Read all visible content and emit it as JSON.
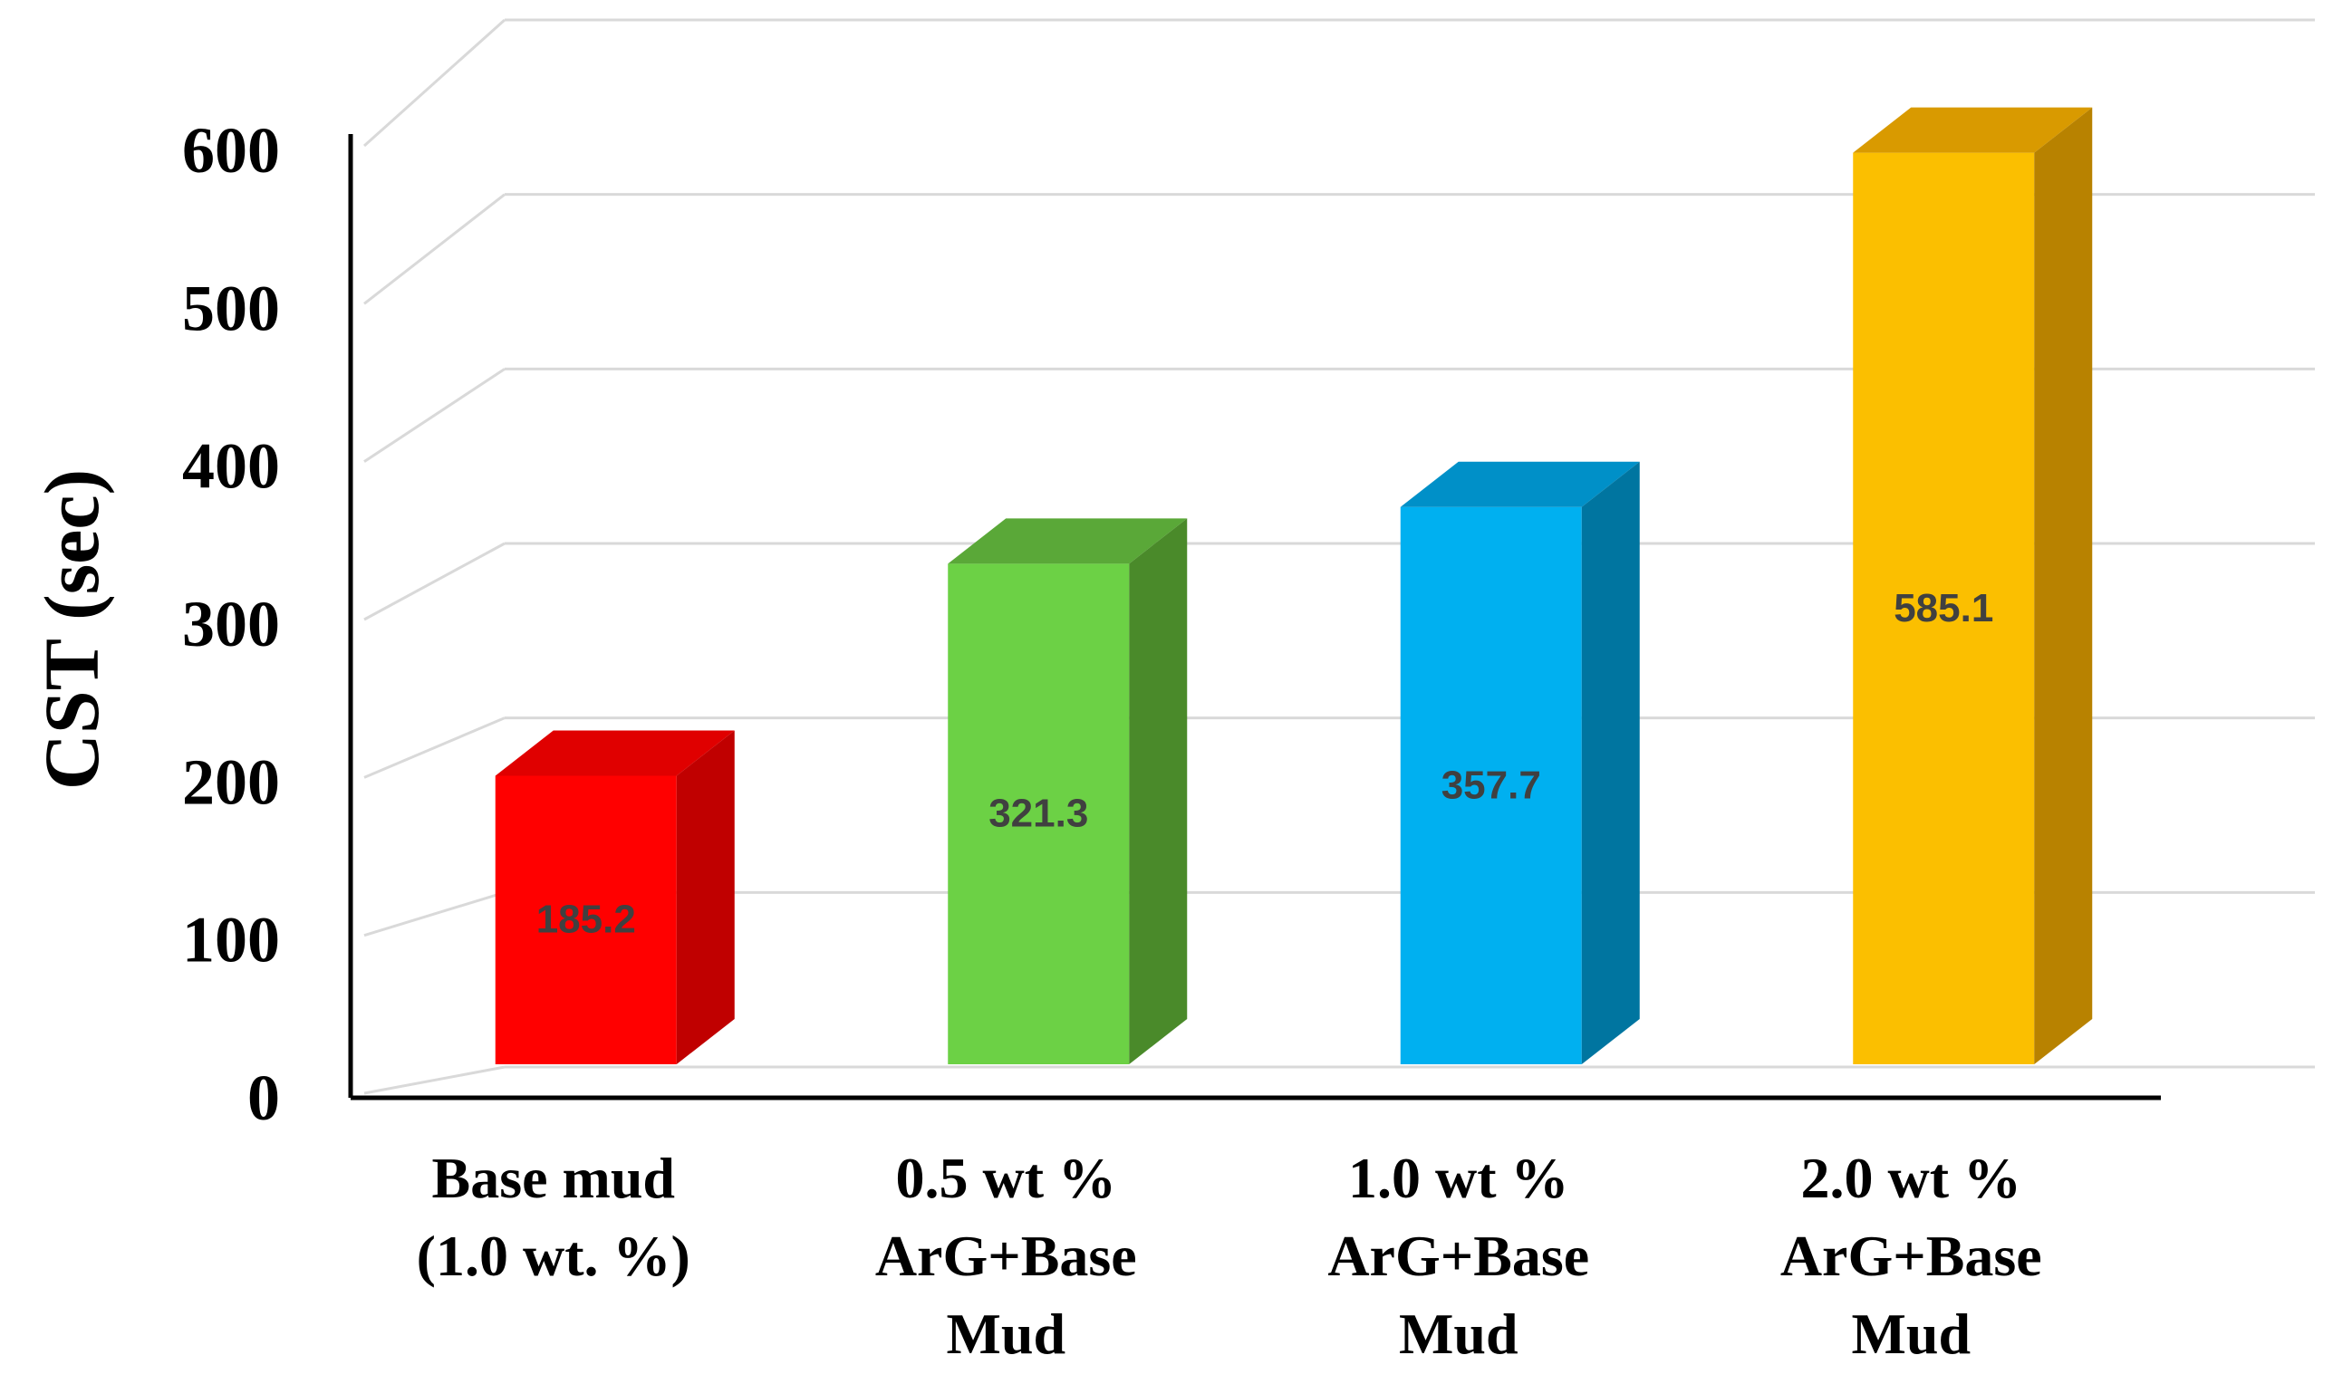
{
  "chart_data": {
    "type": "bar",
    "style": "3d-column",
    "title": "",
    "xlabel": "",
    "ylabel": "CST (sec)",
    "ylim": [
      0,
      600
    ],
    "yticks": [
      0,
      100,
      200,
      300,
      400,
      500,
      600
    ],
    "grid": true,
    "legend": "none",
    "categories": [
      [
        "Base mud",
        "(1.0 wt. %)"
      ],
      [
        "0.5 wt %",
        "ArG+Base",
        "Mud"
      ],
      [
        "1.0 wt %",
        "ArG+Base",
        "Mud"
      ],
      [
        "2.0 wt %",
        "ArG+Base",
        "Mud"
      ]
    ],
    "values": [
      185.2,
      321.3,
      357.7,
      585.1
    ],
    "data_labels": [
      "185.2",
      "321.3",
      "357.7",
      "585.1"
    ],
    "colors": [
      {
        "front": "#ff0000",
        "top": "#e00000",
        "side": "#c00000"
      },
      {
        "front": "#6cd145",
        "top": "#5aa838",
        "side": "#4a8a2a"
      },
      {
        "front": "#00b0f0",
        "top": "#0090c8",
        "side": "#0075a0"
      },
      {
        "front": "#fbbf00",
        "top": "#d99a00",
        "side": "#b88200"
      }
    ]
  }
}
